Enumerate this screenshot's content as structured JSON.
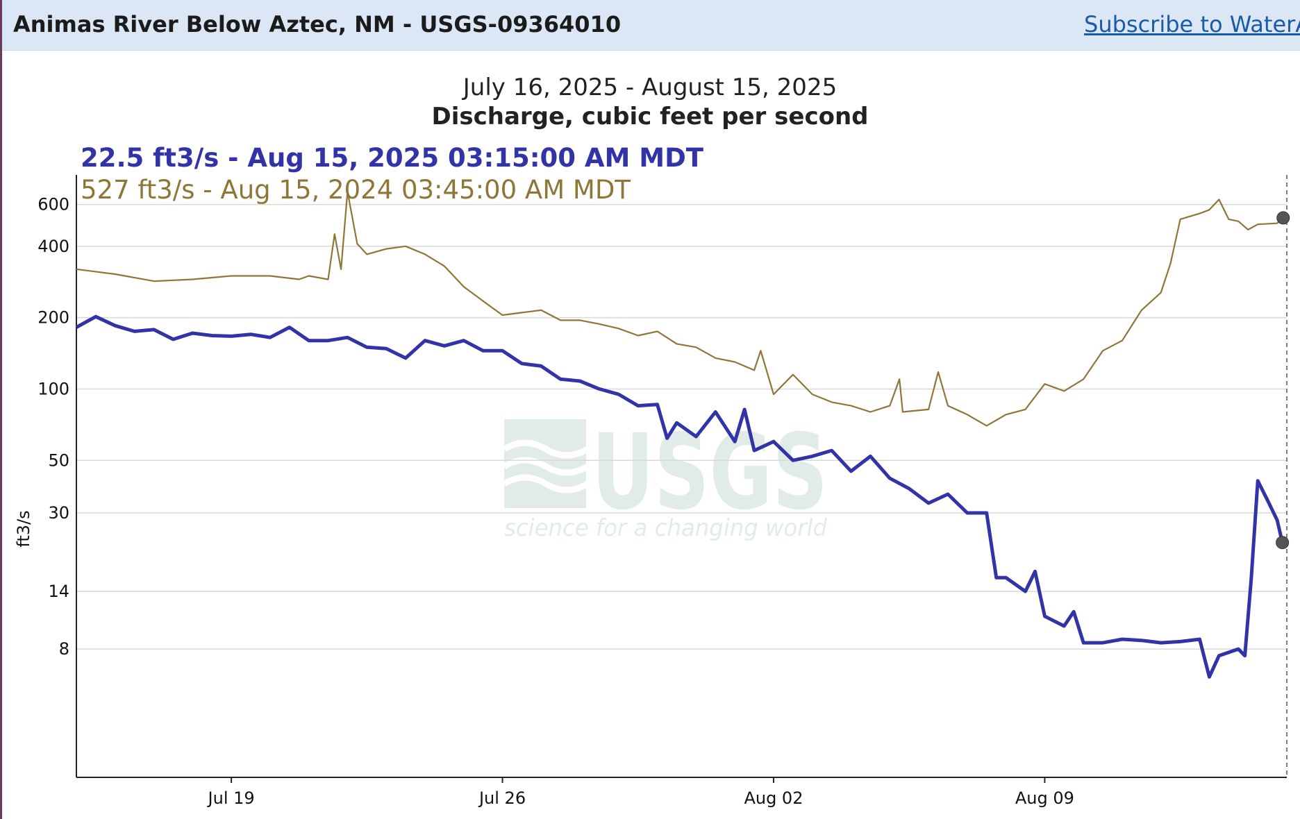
{
  "header": {
    "site_title": "Animas River Below Aztec, NM - USGS-09364010",
    "subscribe_label": "Subscribe to WaterAle"
  },
  "colors": {
    "current_series": "#3333a8",
    "prior_series": "#8d7636",
    "header_bg": "#dbe7f5",
    "link": "#1a5aa8"
  },
  "watermark": {
    "logo": "USGS",
    "tagline": "science for a changing world"
  },
  "chart_data": {
    "type": "line",
    "title": "Discharge, cubic feet per second",
    "subtitle": "July 16, 2025 - August 15, 2025",
    "ylabel": "ft3/s",
    "yscale": "log",
    "ylim": [
      2.3,
      800
    ],
    "xlim": [
      "2025-07-15T00:00",
      "2025-08-15T06:00"
    ],
    "y_ticks": [
      8,
      14,
      30,
      50,
      100,
      200,
      400,
      600
    ],
    "x_ticks": [
      {
        "date": "2025-07-19",
        "label": "Jul 19"
      },
      {
        "date": "2025-07-26",
        "label": "Jul 26"
      },
      {
        "date": "2025-08-02",
        "label": "Aug 02"
      },
      {
        "date": "2025-08-09",
        "label": "Aug 09"
      }
    ],
    "grid": true,
    "legend": [
      {
        "text": "22.5 ft3/s - Aug 15, 2025 03:15:00 AM MDT",
        "series": "current"
      },
      {
        "text": "527 ft3/s - Aug 15, 2024 03:45:00 AM MDT",
        "series": "prior"
      }
    ],
    "series": [
      {
        "id": "current",
        "color": "#3333a8",
        "points": [
          [
            "2025-07-15T00:00",
            182
          ],
          [
            "2025-07-15T12:00",
            202
          ],
          [
            "2025-07-16T00:00",
            185
          ],
          [
            "2025-07-16T12:00",
            175
          ],
          [
            "2025-07-17T00:00",
            178
          ],
          [
            "2025-07-17T12:00",
            162
          ],
          [
            "2025-07-18T00:00",
            172
          ],
          [
            "2025-07-18T12:00",
            168
          ],
          [
            "2025-07-19T00:00",
            167
          ],
          [
            "2025-07-19T12:00",
            170
          ],
          [
            "2025-07-20T00:00",
            165
          ],
          [
            "2025-07-20T12:00",
            182
          ],
          [
            "2025-07-21T00:00",
            160
          ],
          [
            "2025-07-21T12:00",
            160
          ],
          [
            "2025-07-22T00:00",
            165
          ],
          [
            "2025-07-22T12:00",
            150
          ],
          [
            "2025-07-23T00:00",
            148
          ],
          [
            "2025-07-23T12:00",
            135
          ],
          [
            "2025-07-24T00:00",
            160
          ],
          [
            "2025-07-24T12:00",
            152
          ],
          [
            "2025-07-25T00:00",
            160
          ],
          [
            "2025-07-25T12:00",
            145
          ],
          [
            "2025-07-26T00:00",
            145
          ],
          [
            "2025-07-26T12:00",
            128
          ],
          [
            "2025-07-27T00:00",
            125
          ],
          [
            "2025-07-27T12:00",
            110
          ],
          [
            "2025-07-28T00:00",
            108
          ],
          [
            "2025-07-28T12:00",
            100
          ],
          [
            "2025-07-29T00:00",
            95
          ],
          [
            "2025-07-29T12:00",
            85
          ],
          [
            "2025-07-30T00:00",
            86
          ],
          [
            "2025-07-30T06:00",
            62
          ],
          [
            "2025-07-30T12:00",
            72
          ],
          [
            "2025-07-31T00:00",
            63
          ],
          [
            "2025-07-31T12:00",
            80
          ],
          [
            "2025-08-01T00:00",
            60
          ],
          [
            "2025-08-01T06:00",
            82
          ],
          [
            "2025-08-01T12:00",
            55
          ],
          [
            "2025-08-02T00:00",
            60
          ],
          [
            "2025-08-02T12:00",
            50
          ],
          [
            "2025-08-03T00:00",
            52
          ],
          [
            "2025-08-03T12:00",
            55
          ],
          [
            "2025-08-04T00:00",
            45
          ],
          [
            "2025-08-04T12:00",
            52
          ],
          [
            "2025-08-05T00:00",
            42
          ],
          [
            "2025-08-05T12:00",
            38
          ],
          [
            "2025-08-06T00:00",
            33
          ],
          [
            "2025-08-06T12:00",
            36
          ],
          [
            "2025-08-07T00:00",
            30
          ],
          [
            "2025-08-07T12:00",
            30
          ],
          [
            "2025-08-07T18:00",
            16
          ],
          [
            "2025-08-08T00:00",
            16
          ],
          [
            "2025-08-08T12:00",
            14
          ],
          [
            "2025-08-08T18:00",
            17
          ],
          [
            "2025-08-09T00:00",
            11
          ],
          [
            "2025-08-09T12:00",
            10
          ],
          [
            "2025-08-09T18:00",
            11.5
          ],
          [
            "2025-08-10T00:00",
            8.5
          ],
          [
            "2025-08-10T12:00",
            8.5
          ],
          [
            "2025-08-11T00:00",
            8.8
          ],
          [
            "2025-08-11T12:00",
            8.7
          ],
          [
            "2025-08-12T00:00",
            8.5
          ],
          [
            "2025-08-12T12:00",
            8.6
          ],
          [
            "2025-08-13T00:00",
            8.8
          ],
          [
            "2025-08-13T06:00",
            6.1
          ],
          [
            "2025-08-13T12:00",
            7.5
          ],
          [
            "2025-08-14T00:00",
            8.0
          ],
          [
            "2025-08-14T04:00",
            7.5
          ],
          [
            "2025-08-14T08:00",
            16
          ],
          [
            "2025-08-14T12:00",
            41
          ],
          [
            "2025-08-14T18:00",
            34
          ],
          [
            "2025-08-15T00:00",
            28
          ],
          [
            "2025-08-15T03:15",
            22.5
          ]
        ]
      },
      {
        "id": "prior",
        "color": "#8d7636",
        "points": [
          [
            "2025-07-15T00:00",
            320
          ],
          [
            "2025-07-16T00:00",
            305
          ],
          [
            "2025-07-17T00:00",
            285
          ],
          [
            "2025-07-18T00:00",
            290
          ],
          [
            "2025-07-19T00:00",
            300
          ],
          [
            "2025-07-20T00:00",
            300
          ],
          [
            "2025-07-20T18:00",
            290
          ],
          [
            "2025-07-21T00:00",
            300
          ],
          [
            "2025-07-21T12:00",
            290
          ],
          [
            "2025-07-21T16:00",
            450
          ],
          [
            "2025-07-21T20:00",
            320
          ],
          [
            "2025-07-22T00:00",
            680
          ],
          [
            "2025-07-22T06:00",
            410
          ],
          [
            "2025-07-22T12:00",
            370
          ],
          [
            "2025-07-23T00:00",
            390
          ],
          [
            "2025-07-23T12:00",
            400
          ],
          [
            "2025-07-24T00:00",
            370
          ],
          [
            "2025-07-24T12:00",
            330
          ],
          [
            "2025-07-25T00:00",
            270
          ],
          [
            "2025-07-25T12:00",
            235
          ],
          [
            "2025-07-26T00:00",
            205
          ],
          [
            "2025-07-26T12:00",
            210
          ],
          [
            "2025-07-27T00:00",
            215
          ],
          [
            "2025-07-27T12:00",
            195
          ],
          [
            "2025-07-28T00:00",
            195
          ],
          [
            "2025-07-28T12:00",
            188
          ],
          [
            "2025-07-29T00:00",
            180
          ],
          [
            "2025-07-29T12:00",
            168
          ],
          [
            "2025-07-30T00:00",
            175
          ],
          [
            "2025-07-30T12:00",
            155
          ],
          [
            "2025-07-31T00:00",
            150
          ],
          [
            "2025-07-31T12:00",
            135
          ],
          [
            "2025-08-01T00:00",
            130
          ],
          [
            "2025-08-01T12:00",
            120
          ],
          [
            "2025-08-01T16:00",
            145
          ],
          [
            "2025-08-02T00:00",
            95
          ],
          [
            "2025-08-02T12:00",
            115
          ],
          [
            "2025-08-03T00:00",
            95
          ],
          [
            "2025-08-03T12:00",
            88
          ],
          [
            "2025-08-04T00:00",
            85
          ],
          [
            "2025-08-04T12:00",
            80
          ],
          [
            "2025-08-05T00:00",
            85
          ],
          [
            "2025-08-05T06:00",
            110
          ],
          [
            "2025-08-05T08:00",
            80
          ],
          [
            "2025-08-06T00:00",
            82
          ],
          [
            "2025-08-06T06:00",
            118
          ],
          [
            "2025-08-06T12:00",
            85
          ],
          [
            "2025-08-07T00:00",
            78
          ],
          [
            "2025-08-07T12:00",
            70
          ],
          [
            "2025-08-08T00:00",
            78
          ],
          [
            "2025-08-08T12:00",
            82
          ],
          [
            "2025-08-09T00:00",
            105
          ],
          [
            "2025-08-09T12:00",
            98
          ],
          [
            "2025-08-10T00:00",
            110
          ],
          [
            "2025-08-10T12:00",
            145
          ],
          [
            "2025-08-11T00:00",
            160
          ],
          [
            "2025-08-11T12:00",
            215
          ],
          [
            "2025-08-12T00:00",
            255
          ],
          [
            "2025-08-12T06:00",
            340
          ],
          [
            "2025-08-12T12:00",
            520
          ],
          [
            "2025-08-13T00:00",
            550
          ],
          [
            "2025-08-13T06:00",
            570
          ],
          [
            "2025-08-13T12:00",
            630
          ],
          [
            "2025-08-13T18:00",
            520
          ],
          [
            "2025-08-14T00:00",
            510
          ],
          [
            "2025-08-14T06:00",
            470
          ],
          [
            "2025-08-14T12:00",
            495
          ],
          [
            "2025-08-15T00:00",
            500
          ],
          [
            "2025-08-15T03:45",
            527
          ]
        ]
      }
    ]
  }
}
